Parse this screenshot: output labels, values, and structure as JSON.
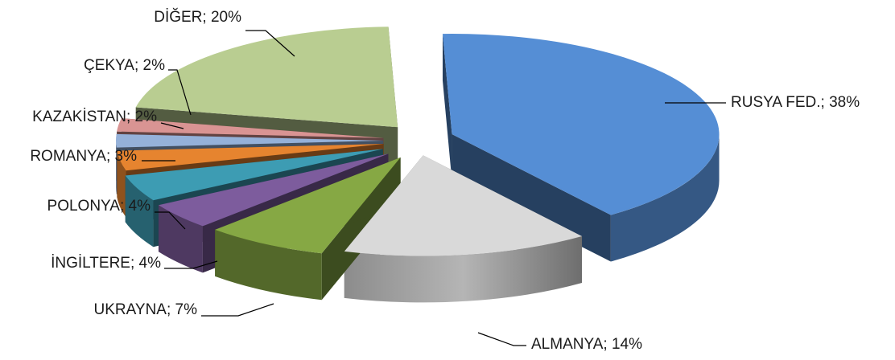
{
  "chart_data": {
    "type": "pie",
    "title": "",
    "slices": [
      {
        "label": "RUSYA FED.",
        "value": 38,
        "display": "RUSYA FED.; 38%",
        "color": "#558ED5"
      },
      {
        "label": "ALMANYA",
        "value": 14,
        "display": "ALMANYA; 14%",
        "color": "#D9D9D9"
      },
      {
        "label": "UKRAYNA",
        "value": 7,
        "display": "UKRAYNA; 7%",
        "color": "#86A844"
      },
      {
        "label": "İNGİLTERE",
        "value": 4,
        "display": "İNGİLTERE; 4%",
        "color": "#7D5C9D"
      },
      {
        "label": "POLONYA",
        "value": 4,
        "display": "POLONYA; 4%",
        "color": "#3D9CB3"
      },
      {
        "label": "ROMANYA",
        "value": 3,
        "display": "ROMANYA; 3%",
        "color": "#E6842F"
      },
      {
        "label": "KAZAKİSTAN",
        "value": 2,
        "display": "KAZAKİSTAN; 2%",
        "color": "#95B1D9"
      },
      {
        "label": "ÇEKYA",
        "value": 2,
        "display": "ÇEKYA; 2%",
        "color": "#D99493"
      },
      {
        "label": "DİĞER",
        "value": 20,
        "display": "DİĞER; 20%",
        "color": "#B9CD91"
      }
    ],
    "legend": "none",
    "data_labels": "outside with leader lines",
    "style": "3D exploded pie"
  }
}
